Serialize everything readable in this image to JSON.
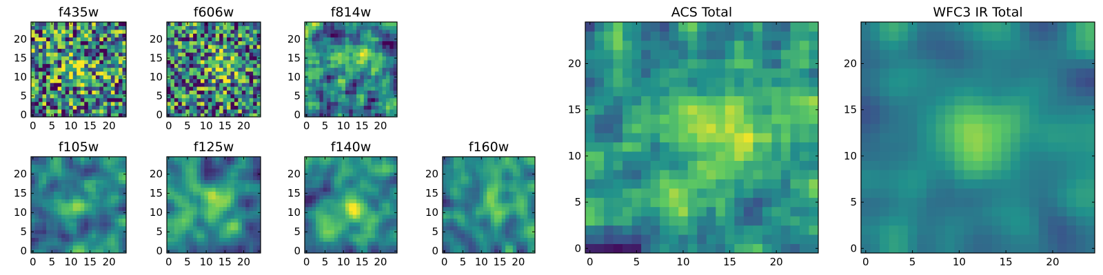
{
  "figure": {
    "description": "HST filter postage stamps (25x25 pixel cutouts) and summed totals"
  },
  "palette": [
    "#440154",
    "#3b528b",
    "#21918c",
    "#5ec962",
    "#fde725"
  ],
  "chart_data": [
    {
      "type": "heatmap",
      "title": "f435w",
      "grid_size": 25,
      "xlim": [
        -0.5,
        24.5
      ],
      "ylim": [
        -0.5,
        24.5
      ],
      "xticks": [
        0,
        5,
        10,
        15,
        20
      ],
      "yticks": [
        0,
        5,
        10,
        15,
        20
      ],
      "colormap": "viridis",
      "vmin": 0,
      "vmax": 1,
      "center": [
        12,
        12
      ],
      "smoothness": 0.05,
      "noise": 0.85,
      "seed": 11
    },
    {
      "type": "heatmap",
      "title": "f606w",
      "grid_size": 25,
      "xlim": [
        -0.5,
        24.5
      ],
      "ylim": [
        -0.5,
        24.5
      ],
      "xticks": [
        0,
        5,
        10,
        15,
        20
      ],
      "yticks": [
        0,
        5,
        10,
        15,
        20
      ],
      "colormap": "viridis",
      "vmin": 0,
      "vmax": 1,
      "center": [
        14,
        13
      ],
      "smoothness": 0.1,
      "noise": 0.8,
      "seed": 23
    },
    {
      "type": "heatmap",
      "title": "f814w",
      "grid_size": 25,
      "xlim": [
        -0.5,
        24.5
      ],
      "ylim": [
        -0.5,
        24.5
      ],
      "xticks": [
        0,
        5,
        10,
        15,
        20
      ],
      "yticks": [
        0,
        5,
        10,
        15,
        20
      ],
      "colormap": "viridis",
      "vmin": 0,
      "vmax": 1,
      "center": [
        14,
        15
      ],
      "smoothness": 0.15,
      "noise": 0.8,
      "seed": 37
    },
    {
      "type": "heatmap",
      "title": "f105w",
      "grid_size": 25,
      "xlim": [
        -0.5,
        24.5
      ],
      "ylim": [
        -0.5,
        24.5
      ],
      "xticks": [
        0,
        5,
        10,
        15,
        20
      ],
      "yticks": [
        0,
        5,
        10,
        15,
        20
      ],
      "colormap": "viridis",
      "vmin": 0,
      "vmax": 1,
      "center": [
        12,
        12
      ],
      "smoothness": 0.45,
      "noise": 0.55,
      "seed": 41
    },
    {
      "type": "heatmap",
      "title": "f125w",
      "grid_size": 25,
      "xlim": [
        -0.5,
        24.5
      ],
      "ylim": [
        -0.5,
        24.5
      ],
      "xticks": [
        0,
        5,
        10,
        15,
        20
      ],
      "yticks": [
        0,
        5,
        10,
        15,
        20
      ],
      "colormap": "viridis",
      "vmin": 0,
      "vmax": 1,
      "center": [
        13,
        12
      ],
      "smoothness": 0.45,
      "noise": 0.55,
      "seed": 53
    },
    {
      "type": "heatmap",
      "title": "f140w",
      "grid_size": 25,
      "xlim": [
        -0.5,
        24.5
      ],
      "ylim": [
        -0.5,
        24.5
      ],
      "xticks": [
        0,
        5,
        10,
        15,
        20
      ],
      "yticks": [
        0,
        5,
        10,
        15,
        20
      ],
      "colormap": "viridis",
      "vmin": 0,
      "vmax": 1,
      "center": [
        12,
        11
      ],
      "smoothness": 0.45,
      "noise": 0.55,
      "seed": 67
    },
    {
      "type": "heatmap",
      "title": "f160w",
      "grid_size": 25,
      "xlim": [
        -0.5,
        24.5
      ],
      "ylim": [
        -0.5,
        24.5
      ],
      "xticks": [
        0,
        5,
        10,
        15,
        20
      ],
      "yticks": [
        0,
        5,
        10,
        15,
        20
      ],
      "colormap": "viridis",
      "vmin": 0,
      "vmax": 1,
      "center": [
        14,
        13
      ],
      "smoothness": 0.5,
      "noise": 0.5,
      "seed": 79
    },
    {
      "type": "heatmap",
      "title": "ACS Total",
      "grid_size": 25,
      "xlim": [
        -0.5,
        24.5
      ],
      "ylim": [
        -0.5,
        24.5
      ],
      "xticks": [
        0,
        5,
        10,
        15,
        20
      ],
      "yticks": [
        0,
        5,
        10,
        15,
        20
      ],
      "colormap": "viridis",
      "vmin": 0,
      "vmax": 1,
      "center": [
        14,
        13
      ],
      "smoothness": 0.3,
      "noise": 0.65,
      "seed": 97
    },
    {
      "type": "heatmap",
      "title": "WFC3 IR Total",
      "grid_size": 25,
      "xlim": [
        -0.5,
        24.5
      ],
      "ylim": [
        -0.5,
        24.5
      ],
      "xticks": [
        0,
        5,
        10,
        15,
        20
      ],
      "yticks": [
        0,
        5,
        10,
        15,
        20
      ],
      "colormap": "viridis",
      "vmin": 0,
      "vmax": 1,
      "center": [
        12,
        12
      ],
      "smoothness": 0.75,
      "noise": 0.35,
      "seed": 113
    }
  ]
}
